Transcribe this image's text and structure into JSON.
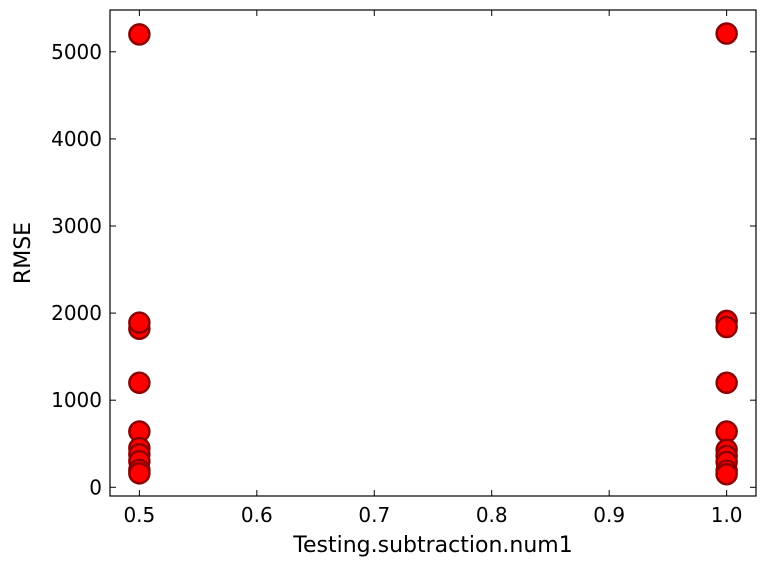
{
  "chart_data": {
    "type": "scatter",
    "title": "",
    "xlabel": "Testing.subtraction.num1",
    "ylabel": "RMSE",
    "xlim": [
      0.475,
      1.025
    ],
    "ylim": [
      -100,
      5480
    ],
    "x_ticks": [
      0.5,
      0.6,
      0.7,
      0.8,
      0.9,
      1.0
    ],
    "x_tick_labels": [
      "0.5",
      "0.6",
      "0.7",
      "0.8",
      "0.9",
      "1.0"
    ],
    "y_ticks": [
      0,
      1000,
      2000,
      3000,
      4000,
      5000
    ],
    "y_tick_labels": [
      "0",
      "1000",
      "2000",
      "3000",
      "4000",
      "5000"
    ],
    "grid": false,
    "legend": "none",
    "marker_color": "#ff0000",
    "marker_edge_color": "#8b0000",
    "points": [
      {
        "x": 0.5,
        "y": 5200
      },
      {
        "x": 0.5,
        "y": 1820
      },
      {
        "x": 0.5,
        "y": 1890
      },
      {
        "x": 0.5,
        "y": 1200
      },
      {
        "x": 0.5,
        "y": 640
      },
      {
        "x": 0.5,
        "y": 450
      },
      {
        "x": 0.5,
        "y": 380
      },
      {
        "x": 0.5,
        "y": 300
      },
      {
        "x": 0.5,
        "y": 200
      },
      {
        "x": 0.5,
        "y": 160
      },
      {
        "x": 1.0,
        "y": 5210
      },
      {
        "x": 1.0,
        "y": 1910
      },
      {
        "x": 1.0,
        "y": 1840
      },
      {
        "x": 1.0,
        "y": 1200
      },
      {
        "x": 1.0,
        "y": 640
      },
      {
        "x": 1.0,
        "y": 430
      },
      {
        "x": 1.0,
        "y": 360
      },
      {
        "x": 1.0,
        "y": 290
      },
      {
        "x": 1.0,
        "y": 190
      },
      {
        "x": 1.0,
        "y": 150
      }
    ]
  }
}
